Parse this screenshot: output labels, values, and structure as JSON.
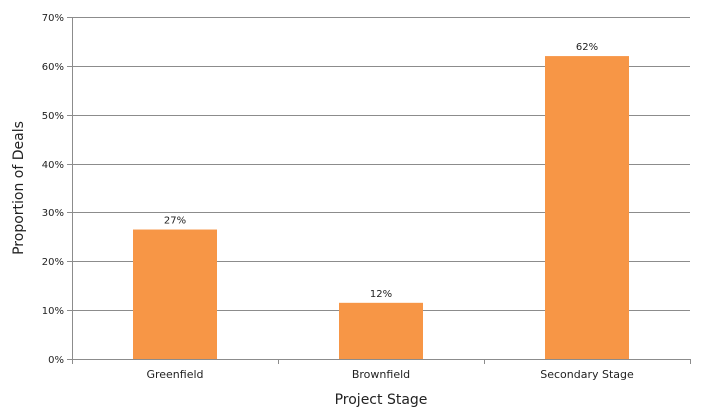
{
  "chart_data": {
    "type": "bar",
    "title": "",
    "xlabel": "Project Stage",
    "ylabel": "Proportion of Deals",
    "categories": [
      "Greenfield",
      "Brownfield",
      "Secondary Stage"
    ],
    "values": [
      26.5,
      11.5,
      62
    ],
    "data_labels": [
      "27%",
      "12%",
      "62%"
    ],
    "ylim": [
      0,
      70
    ],
    "yticks": [
      0,
      10,
      20,
      30,
      40,
      50,
      60,
      70
    ],
    "ytick_labels": [
      "0%",
      "10%",
      "20%",
      "30%",
      "40%",
      "50%",
      "60%",
      "70%"
    ],
    "grid": "horizontal",
    "bar_color": "#F79646",
    "grid_color": "#8c8c8c",
    "legend": "none"
  }
}
